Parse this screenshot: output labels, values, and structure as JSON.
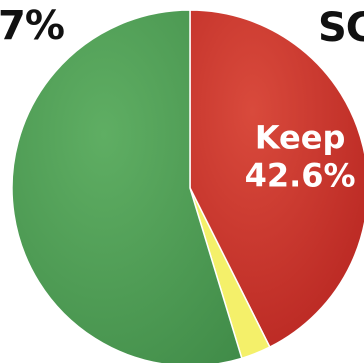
{
  "chart_data": {
    "type": "pie",
    "slices": [
      {
        "label": "Keep",
        "value": 42.6,
        "value_label": "42.6%",
        "color": "#c8312b"
      },
      {
        "label": "",
        "value": 2.7,
        "value_label": "",
        "color": "#f4f06a"
      },
      {
        "label": "",
        "value": 54.7,
        "value_label": "",
        "color": "#4e9a54"
      }
    ],
    "start_angle_deg": 0,
    "direction": "clockwise",
    "cropped_labels": {
      "top_left": "7%",
      "top_right": "SC"
    }
  }
}
